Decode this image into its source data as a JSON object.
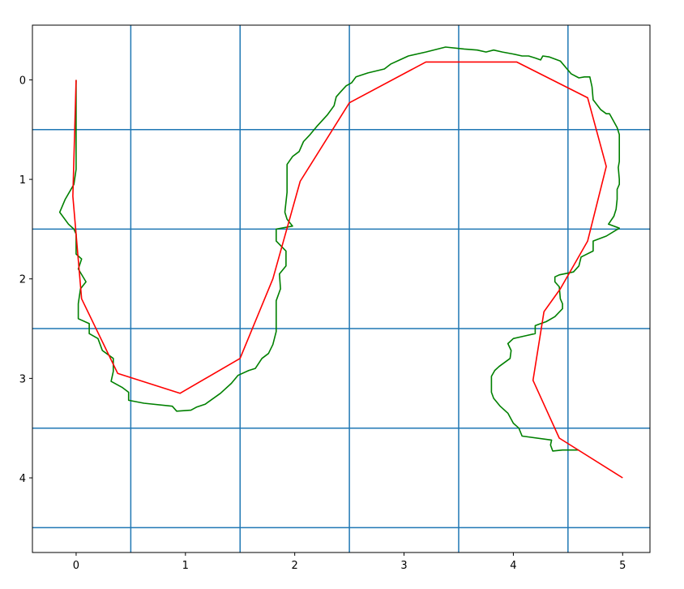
{
  "chart_data": {
    "type": "line",
    "title": "",
    "xlabel": "",
    "ylabel": "",
    "xlim": [
      -0.4,
      5.25
    ],
    "ylim": [
      4.75,
      -0.55
    ],
    "y_inverted": true,
    "xticks": [
      "0",
      "1",
      "2",
      "3",
      "4",
      "5"
    ],
    "yticks": [
      "0",
      "1",
      "2",
      "3",
      "4"
    ],
    "xtick_values": [
      0,
      1,
      2,
      3,
      4,
      5
    ],
    "ytick_values": [
      0,
      1,
      2,
      3,
      4
    ],
    "grid_lines": {
      "color": "#1f77b4",
      "x": [
        0.5,
        1.5,
        2.5,
        3.5,
        4.5
      ],
      "y": [
        0.5,
        1.5,
        2.5,
        3.5,
        4.5
      ]
    },
    "legend": "none",
    "series": [
      {
        "color": "#008000",
        "points": [
          [
            0.0,
            0.0
          ],
          [
            0.0,
            0.5
          ],
          [
            0.0,
            0.9
          ],
          [
            -0.02,
            1.05
          ],
          [
            -0.1,
            1.2
          ],
          [
            -0.15,
            1.33
          ],
          [
            -0.07,
            1.45
          ],
          [
            -0.02,
            1.5
          ],
          [
            0.0,
            1.55
          ],
          [
            0.0,
            1.75
          ],
          [
            0.05,
            1.8
          ],
          [
            0.02,
            1.9
          ],
          [
            0.09,
            2.03
          ],
          [
            0.04,
            2.1
          ],
          [
            0.02,
            2.25
          ],
          [
            0.02,
            2.4
          ],
          [
            0.12,
            2.45
          ],
          [
            0.12,
            2.55
          ],
          [
            0.2,
            2.6
          ],
          [
            0.24,
            2.72
          ],
          [
            0.34,
            2.8
          ],
          [
            0.34,
            2.93
          ],
          [
            0.32,
            3.03
          ],
          [
            0.42,
            3.09
          ],
          [
            0.48,
            3.14
          ],
          [
            0.48,
            3.22
          ],
          [
            0.62,
            3.25
          ],
          [
            0.88,
            3.28
          ],
          [
            0.92,
            3.33
          ],
          [
            1.05,
            3.32
          ],
          [
            1.1,
            3.29
          ],
          [
            1.18,
            3.26
          ],
          [
            1.32,
            3.15
          ],
          [
            1.42,
            3.05
          ],
          [
            1.48,
            2.97
          ],
          [
            1.58,
            2.92
          ],
          [
            1.64,
            2.9
          ],
          [
            1.7,
            2.8
          ],
          [
            1.76,
            2.75
          ],
          [
            1.8,
            2.66
          ],
          [
            1.83,
            2.53
          ],
          [
            1.83,
            2.22
          ],
          [
            1.87,
            2.1
          ],
          [
            1.86,
            1.95
          ],
          [
            1.92,
            1.87
          ],
          [
            1.92,
            1.72
          ],
          [
            1.83,
            1.62
          ],
          [
            1.83,
            1.5
          ],
          [
            1.98,
            1.47
          ],
          [
            1.93,
            1.4
          ],
          [
            1.91,
            1.33
          ],
          [
            1.93,
            1.13
          ],
          [
            1.93,
            0.85
          ],
          [
            1.98,
            0.77
          ],
          [
            2.04,
            0.72
          ],
          [
            2.08,
            0.62
          ],
          [
            2.14,
            0.55
          ],
          [
            2.2,
            0.47
          ],
          [
            2.3,
            0.35
          ],
          [
            2.36,
            0.26
          ],
          [
            2.38,
            0.17
          ],
          [
            2.42,
            0.12
          ],
          [
            2.47,
            0.06
          ],
          [
            2.52,
            0.03
          ],
          [
            2.56,
            -0.03
          ],
          [
            2.67,
            -0.07
          ],
          [
            2.82,
            -0.11
          ],
          [
            2.88,
            -0.16
          ],
          [
            2.96,
            -0.2
          ],
          [
            3.04,
            -0.24
          ],
          [
            3.2,
            -0.28
          ],
          [
            3.38,
            -0.33
          ],
          [
            3.55,
            -0.31
          ],
          [
            3.67,
            -0.3
          ],
          [
            3.75,
            -0.28
          ],
          [
            3.82,
            -0.3
          ],
          [
            3.9,
            -0.28
          ],
          [
            4.0,
            -0.26
          ],
          [
            4.08,
            -0.24
          ],
          [
            4.14,
            -0.24
          ],
          [
            4.2,
            -0.22
          ],
          [
            4.25,
            -0.2
          ],
          [
            4.27,
            -0.24
          ],
          [
            4.33,
            -0.23
          ],
          [
            4.43,
            -0.19
          ],
          [
            4.53,
            -0.06
          ],
          [
            4.6,
            -0.02
          ],
          [
            4.65,
            -0.03
          ],
          [
            4.7,
            -0.03
          ],
          [
            4.72,
            0.07
          ],
          [
            4.73,
            0.2
          ],
          [
            4.8,
            0.3
          ],
          [
            4.85,
            0.34
          ],
          [
            4.88,
            0.34
          ],
          [
            4.92,
            0.42
          ],
          [
            4.95,
            0.48
          ],
          [
            4.97,
            0.55
          ],
          [
            4.97,
            0.82
          ],
          [
            4.96,
            0.88
          ],
          [
            4.97,
            1.0
          ],
          [
            4.97,
            1.05
          ],
          [
            4.95,
            1.1
          ],
          [
            4.95,
            1.2
          ],
          [
            4.94,
            1.3
          ],
          [
            4.92,
            1.37
          ],
          [
            4.87,
            1.45
          ],
          [
            4.97,
            1.49
          ],
          [
            4.85,
            1.57
          ],
          [
            4.73,
            1.62
          ],
          [
            4.73,
            1.72
          ],
          [
            4.62,
            1.78
          ],
          [
            4.6,
            1.87
          ],
          [
            4.55,
            1.93
          ],
          [
            4.42,
            1.96
          ],
          [
            4.38,
            1.98
          ],
          [
            4.38,
            2.03
          ],
          [
            4.42,
            2.08
          ],
          [
            4.43,
            2.2
          ],
          [
            4.45,
            2.25
          ],
          [
            4.45,
            2.3
          ],
          [
            4.38,
            2.38
          ],
          [
            4.3,
            2.43
          ],
          [
            4.25,
            2.45
          ],
          [
            4.2,
            2.47
          ],
          [
            4.2,
            2.55
          ],
          [
            4.12,
            2.57
          ],
          [
            4.0,
            2.6
          ],
          [
            3.95,
            2.65
          ],
          [
            3.98,
            2.72
          ],
          [
            3.97,
            2.8
          ],
          [
            3.87,
            2.88
          ],
          [
            3.83,
            2.92
          ],
          [
            3.8,
            2.98
          ],
          [
            3.8,
            3.05
          ],
          [
            3.8,
            3.14
          ],
          [
            3.82,
            3.2
          ],
          [
            3.88,
            3.28
          ],
          [
            3.95,
            3.35
          ],
          [
            4.0,
            3.45
          ],
          [
            4.05,
            3.5
          ],
          [
            4.08,
            3.58
          ],
          [
            4.35,
            3.62
          ],
          [
            4.34,
            3.67
          ],
          [
            4.36,
            3.73
          ],
          [
            4.45,
            3.72
          ],
          [
            4.6,
            3.72
          ]
        ]
      },
      {
        "color": "#ff0000",
        "points": [
          [
            0.0,
            0.0
          ],
          [
            -0.03,
            1.17
          ],
          [
            0.05,
            2.2
          ],
          [
            0.38,
            2.95
          ],
          [
            0.95,
            3.15
          ],
          [
            1.5,
            2.8
          ],
          [
            1.8,
            2.0
          ],
          [
            2.05,
            1.02
          ],
          [
            2.5,
            0.23
          ],
          [
            3.2,
            -0.18
          ],
          [
            4.03,
            -0.18
          ],
          [
            4.68,
            0.18
          ],
          [
            4.85,
            0.87
          ],
          [
            4.68,
            1.62
          ],
          [
            4.43,
            2.1
          ],
          [
            4.28,
            2.33
          ],
          [
            4.18,
            3.02
          ],
          [
            4.42,
            3.6
          ],
          [
            5.0,
            4.0
          ]
        ]
      }
    ]
  }
}
